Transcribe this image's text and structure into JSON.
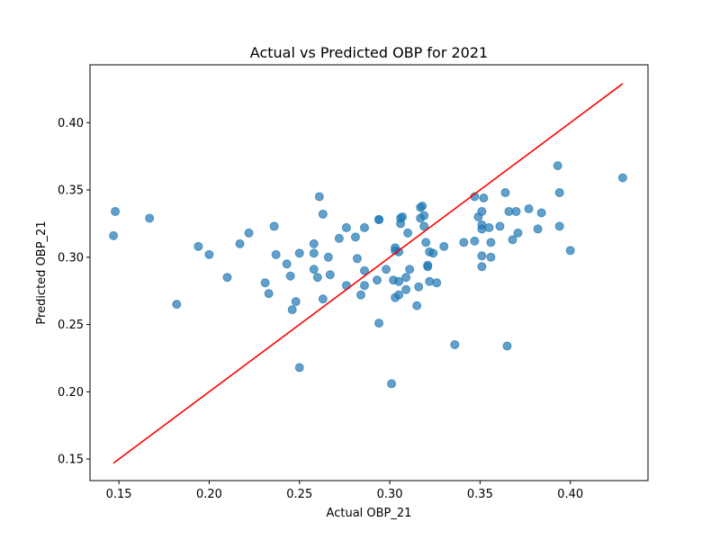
{
  "chart_data": {
    "type": "scatter",
    "title": "Actual vs Predicted OBP for 2021",
    "xlabel": "Actual OBP_21",
    "ylabel": "Predicted OBP_21",
    "xlim": [
      0.134,
      0.443
    ],
    "ylim": [
      0.134,
      0.443
    ],
    "xticks": [
      0.15,
      0.2,
      0.25,
      0.3,
      0.35,
      0.4
    ],
    "yticks": [
      0.15,
      0.2,
      0.25,
      0.3,
      0.35,
      0.4
    ],
    "xtick_labels": [
      "0.15",
      "0.20",
      "0.25",
      "0.30",
      "0.35",
      "0.40"
    ],
    "ytick_labels": [
      "0.15",
      "0.20",
      "0.25",
      "0.30",
      "0.35",
      "0.40"
    ],
    "grid": false,
    "point_color": "#1f77b4",
    "point_alpha": 0.7,
    "line_color": "#ff0000",
    "reference_line": {
      "x": [
        0.147,
        0.429
      ],
      "y": [
        0.147,
        0.429
      ]
    },
    "points": [
      {
        "x": 0.147,
        "y": 0.316
      },
      {
        "x": 0.148,
        "y": 0.334
      },
      {
        "x": 0.167,
        "y": 0.329
      },
      {
        "x": 0.182,
        "y": 0.265
      },
      {
        "x": 0.194,
        "y": 0.308
      },
      {
        "x": 0.2,
        "y": 0.302
      },
      {
        "x": 0.21,
        "y": 0.285
      },
      {
        "x": 0.217,
        "y": 0.31
      },
      {
        "x": 0.222,
        "y": 0.318
      },
      {
        "x": 0.231,
        "y": 0.281
      },
      {
        "x": 0.233,
        "y": 0.273
      },
      {
        "x": 0.236,
        "y": 0.323
      },
      {
        "x": 0.237,
        "y": 0.302
      },
      {
        "x": 0.243,
        "y": 0.295
      },
      {
        "x": 0.245,
        "y": 0.286
      },
      {
        "x": 0.246,
        "y": 0.261
      },
      {
        "x": 0.248,
        "y": 0.267
      },
      {
        "x": 0.25,
        "y": 0.218
      },
      {
        "x": 0.25,
        "y": 0.303
      },
      {
        "x": 0.258,
        "y": 0.31
      },
      {
        "x": 0.258,
        "y": 0.303
      },
      {
        "x": 0.258,
        "y": 0.291
      },
      {
        "x": 0.26,
        "y": 0.285
      },
      {
        "x": 0.261,
        "y": 0.345
      },
      {
        "x": 0.263,
        "y": 0.332
      },
      {
        "x": 0.263,
        "y": 0.269
      },
      {
        "x": 0.266,
        "y": 0.3
      },
      {
        "x": 0.267,
        "y": 0.287
      },
      {
        "x": 0.272,
        "y": 0.314
      },
      {
        "x": 0.276,
        "y": 0.322
      },
      {
        "x": 0.276,
        "y": 0.279
      },
      {
        "x": 0.281,
        "y": 0.315
      },
      {
        "x": 0.282,
        "y": 0.299
      },
      {
        "x": 0.284,
        "y": 0.272
      },
      {
        "x": 0.286,
        "y": 0.322
      },
      {
        "x": 0.286,
        "y": 0.29
      },
      {
        "x": 0.286,
        "y": 0.279
      },
      {
        "x": 0.293,
        "y": 0.283
      },
      {
        "x": 0.294,
        "y": 0.328
      },
      {
        "x": 0.294,
        "y": 0.328
      },
      {
        "x": 0.294,
        "y": 0.251
      },
      {
        "x": 0.298,
        "y": 0.291
      },
      {
        "x": 0.301,
        "y": 0.206
      },
      {
        "x": 0.302,
        "y": 0.283
      },
      {
        "x": 0.303,
        "y": 0.307
      },
      {
        "x": 0.303,
        "y": 0.305
      },
      {
        "x": 0.303,
        "y": 0.27
      },
      {
        "x": 0.305,
        "y": 0.304
      },
      {
        "x": 0.305,
        "y": 0.282
      },
      {
        "x": 0.305,
        "y": 0.272
      },
      {
        "x": 0.306,
        "y": 0.329
      },
      {
        "x": 0.306,
        "y": 0.325
      },
      {
        "x": 0.307,
        "y": 0.33
      },
      {
        "x": 0.309,
        "y": 0.285
      },
      {
        "x": 0.309,
        "y": 0.276
      },
      {
        "x": 0.31,
        "y": 0.318
      },
      {
        "x": 0.311,
        "y": 0.291
      },
      {
        "x": 0.315,
        "y": 0.264
      },
      {
        "x": 0.316,
        "y": 0.278
      },
      {
        "x": 0.317,
        "y": 0.337
      },
      {
        "x": 0.317,
        "y": 0.329
      },
      {
        "x": 0.318,
        "y": 0.338
      },
      {
        "x": 0.319,
        "y": 0.331
      },
      {
        "x": 0.319,
        "y": 0.323
      },
      {
        "x": 0.32,
        "y": 0.311
      },
      {
        "x": 0.321,
        "y": 0.294
      },
      {
        "x": 0.321,
        "y": 0.293
      },
      {
        "x": 0.322,
        "y": 0.304
      },
      {
        "x": 0.322,
        "y": 0.282
      },
      {
        "x": 0.324,
        "y": 0.303
      },
      {
        "x": 0.326,
        "y": 0.281
      },
      {
        "x": 0.33,
        "y": 0.308
      },
      {
        "x": 0.336,
        "y": 0.235
      },
      {
        "x": 0.341,
        "y": 0.311
      },
      {
        "x": 0.347,
        "y": 0.345
      },
      {
        "x": 0.347,
        "y": 0.312
      },
      {
        "x": 0.349,
        "y": 0.33
      },
      {
        "x": 0.351,
        "y": 0.334
      },
      {
        "x": 0.351,
        "y": 0.324
      },
      {
        "x": 0.351,
        "y": 0.321
      },
      {
        "x": 0.351,
        "y": 0.301
      },
      {
        "x": 0.351,
        "y": 0.293
      },
      {
        "x": 0.352,
        "y": 0.344
      },
      {
        "x": 0.355,
        "y": 0.322
      },
      {
        "x": 0.356,
        "y": 0.311
      },
      {
        "x": 0.356,
        "y": 0.3
      },
      {
        "x": 0.361,
        "y": 0.323
      },
      {
        "x": 0.364,
        "y": 0.348
      },
      {
        "x": 0.365,
        "y": 0.234
      },
      {
        "x": 0.366,
        "y": 0.334
      },
      {
        "x": 0.368,
        "y": 0.313
      },
      {
        "x": 0.37,
        "y": 0.334
      },
      {
        "x": 0.371,
        "y": 0.318
      },
      {
        "x": 0.377,
        "y": 0.336
      },
      {
        "x": 0.382,
        "y": 0.321
      },
      {
        "x": 0.384,
        "y": 0.333
      },
      {
        "x": 0.393,
        "y": 0.368
      },
      {
        "x": 0.394,
        "y": 0.348
      },
      {
        "x": 0.394,
        "y": 0.323
      },
      {
        "x": 0.4,
        "y": 0.305
      },
      {
        "x": 0.429,
        "y": 0.359
      }
    ]
  }
}
